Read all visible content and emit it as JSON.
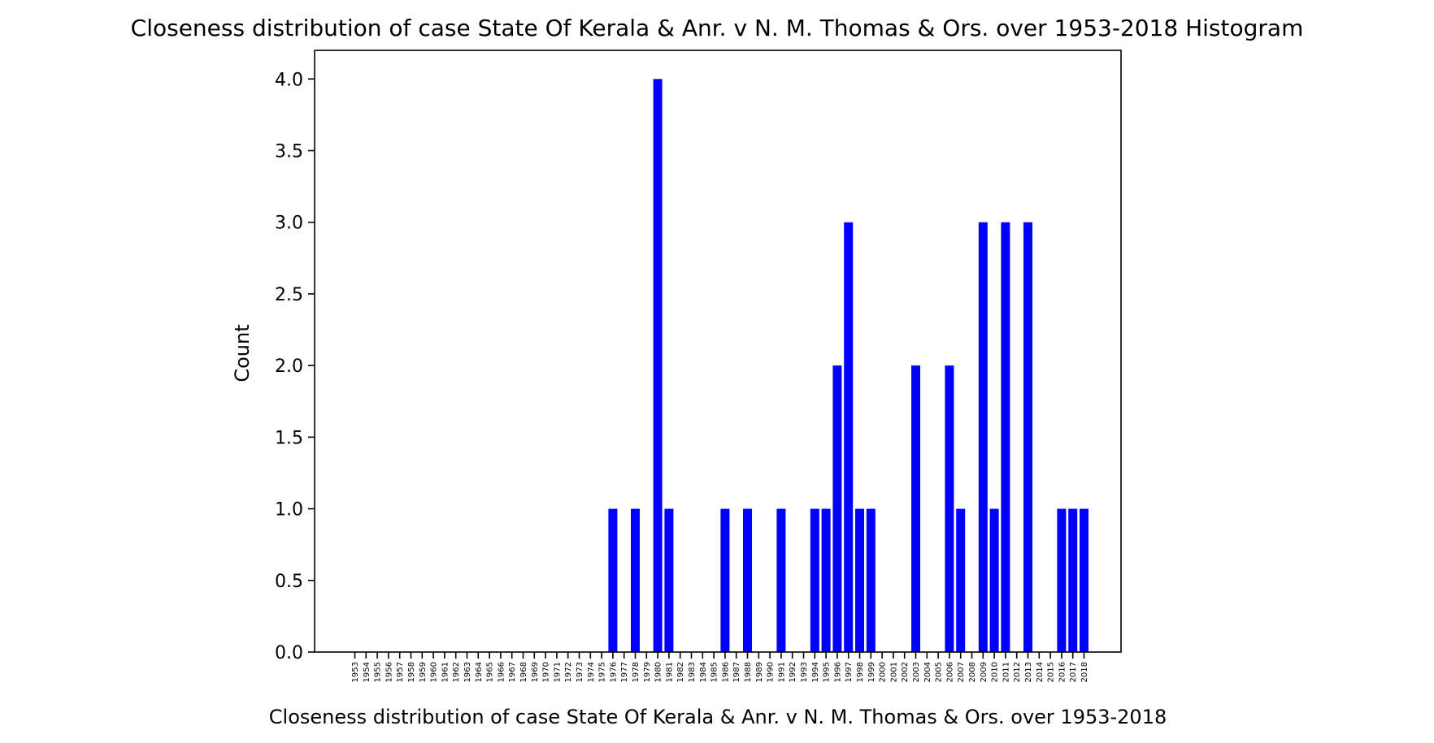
{
  "chart_data": {
    "type": "bar",
    "title": "Closeness distribution of case State Of Kerala & Anr. v N. M. Thomas & Ors. over 1953-2018 Histogram",
    "xlabel": "Closeness distribution of case State Of Kerala & Anr. v N. M. Thomas & Ors. over 1953-2018",
    "ylabel": "Count",
    "ylim": [
      0,
      4.2
    ],
    "yticks": [
      "0.0",
      "0.5",
      "1.0",
      "1.5",
      "2.0",
      "2.5",
      "3.0",
      "3.5",
      "4.0"
    ],
    "bar_color": "#0000ff",
    "grid": false,
    "categories": [
      "1953",
      "1954",
      "1955",
      "1956",
      "1957",
      "1958",
      "1959",
      "1960",
      "1961",
      "1962",
      "1963",
      "1964",
      "1965",
      "1966",
      "1967",
      "1968",
      "1969",
      "1970",
      "1971",
      "1972",
      "1973",
      "1974",
      "1975",
      "1976",
      "1977",
      "1978",
      "1979",
      "1980",
      "1981",
      "1982",
      "1983",
      "1984",
      "1985",
      "1986",
      "1987",
      "1988",
      "1989",
      "1990",
      "1991",
      "1992",
      "1993",
      "1994",
      "1995",
      "1996",
      "1997",
      "1998",
      "1999",
      "2000",
      "2001",
      "2002",
      "2003",
      "2004",
      "2005",
      "2006",
      "2007",
      "2008",
      "2009",
      "2010",
      "2011",
      "2012",
      "2013",
      "2014",
      "2015",
      "2016",
      "2017",
      "2018"
    ],
    "values": [
      0,
      0,
      0,
      0,
      0,
      0,
      0,
      0,
      0,
      0,
      0,
      0,
      0,
      0,
      0,
      0,
      0,
      0,
      0,
      0,
      0,
      0,
      0,
      1,
      0,
      1,
      0,
      4,
      1,
      0,
      0,
      0,
      0,
      1,
      0,
      1,
      0,
      0,
      1,
      0,
      0,
      1,
      1,
      2,
      3,
      1,
      1,
      0,
      0,
      0,
      2,
      0,
      0,
      2,
      1,
      0,
      3,
      1,
      3,
      0,
      3,
      0,
      0,
      1,
      1,
      1
    ]
  }
}
